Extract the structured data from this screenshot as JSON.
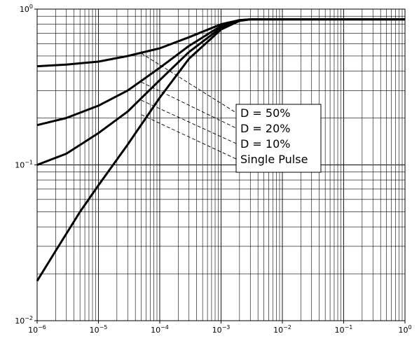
{
  "chart_data": {
    "type": "line",
    "title": "",
    "xlabel": "",
    "ylabel": "",
    "x_scale": "log",
    "y_scale": "log",
    "xlim": [
      1e-06,
      1
    ],
    "ylim": [
      0.01,
      1
    ],
    "grid": "major and minor",
    "x_ticks": [
      {
        "value": 1e-06,
        "base": "10",
        "exp": "−6"
      },
      {
        "value": 1e-05,
        "base": "10",
        "exp": "−5"
      },
      {
        "value": 0.0001,
        "base": "10",
        "exp": "−4"
      },
      {
        "value": 0.001,
        "base": "10",
        "exp": "−3"
      },
      {
        "value": 0.01,
        "base": "10",
        "exp": "−2"
      },
      {
        "value": 0.1,
        "base": "10",
        "exp": "−1"
      },
      {
        "value": 1,
        "base": "10",
        "exp": "0"
      }
    ],
    "y_ticks": [
      {
        "value": 1,
        "base": "10",
        "exp": "0"
      },
      {
        "value": 0.1,
        "base": "10",
        "exp": "−1"
      },
      {
        "value": 0.01,
        "base": "10",
        "exp": "−2"
      }
    ],
    "legend_position": "center-right",
    "series": [
      {
        "name": "D = 50%",
        "x": [
          1e-06,
          3e-06,
          1e-05,
          3e-05,
          0.0001,
          0.0003,
          0.001,
          0.002,
          0.003,
          0.01,
          0.1,
          1
        ],
        "y": [
          0.43,
          0.44,
          0.46,
          0.5,
          0.56,
          0.66,
          0.8,
          0.85,
          0.86,
          0.86,
          0.86,
          0.86
        ]
      },
      {
        "name": "D = 20%",
        "x": [
          1e-06,
          3e-06,
          1e-05,
          3e-05,
          0.0001,
          0.0003,
          0.001,
          0.002,
          0.003,
          0.01,
          0.1,
          1
        ],
        "y": [
          0.18,
          0.2,
          0.24,
          0.3,
          0.42,
          0.58,
          0.78,
          0.85,
          0.86,
          0.86,
          0.86,
          0.86
        ]
      },
      {
        "name": "D = 10%",
        "x": [
          1e-06,
          3e-06,
          1e-05,
          3e-05,
          0.0001,
          0.0003,
          0.001,
          0.002,
          0.003,
          0.01,
          0.1,
          1
        ],
        "y": [
          0.1,
          0.118,
          0.16,
          0.22,
          0.35,
          0.53,
          0.76,
          0.84,
          0.86,
          0.86,
          0.86,
          0.86
        ]
      },
      {
        "name": "Single Pulse",
        "x": [
          1e-06,
          2e-06,
          5e-06,
          1e-05,
          3e-05,
          0.0001,
          0.0003,
          0.001,
          0.002,
          0.003,
          0.01,
          0.1,
          1
        ],
        "y": [
          0.018,
          0.028,
          0.05,
          0.074,
          0.135,
          0.27,
          0.48,
          0.74,
          0.84,
          0.86,
          0.86,
          0.86,
          0.86
        ]
      }
    ],
    "annotations": [
      {
        "series": "D = 50%",
        "from": [
          5e-05,
          0.52
        ]
      },
      {
        "series": "D = 20%",
        "from": [
          5e-05,
          0.34
        ]
      },
      {
        "series": "D = 10%",
        "from": [
          5e-05,
          0.26
        ]
      },
      {
        "series": "Single Pulse",
        "from": [
          5e-05,
          0.21
        ]
      }
    ]
  }
}
